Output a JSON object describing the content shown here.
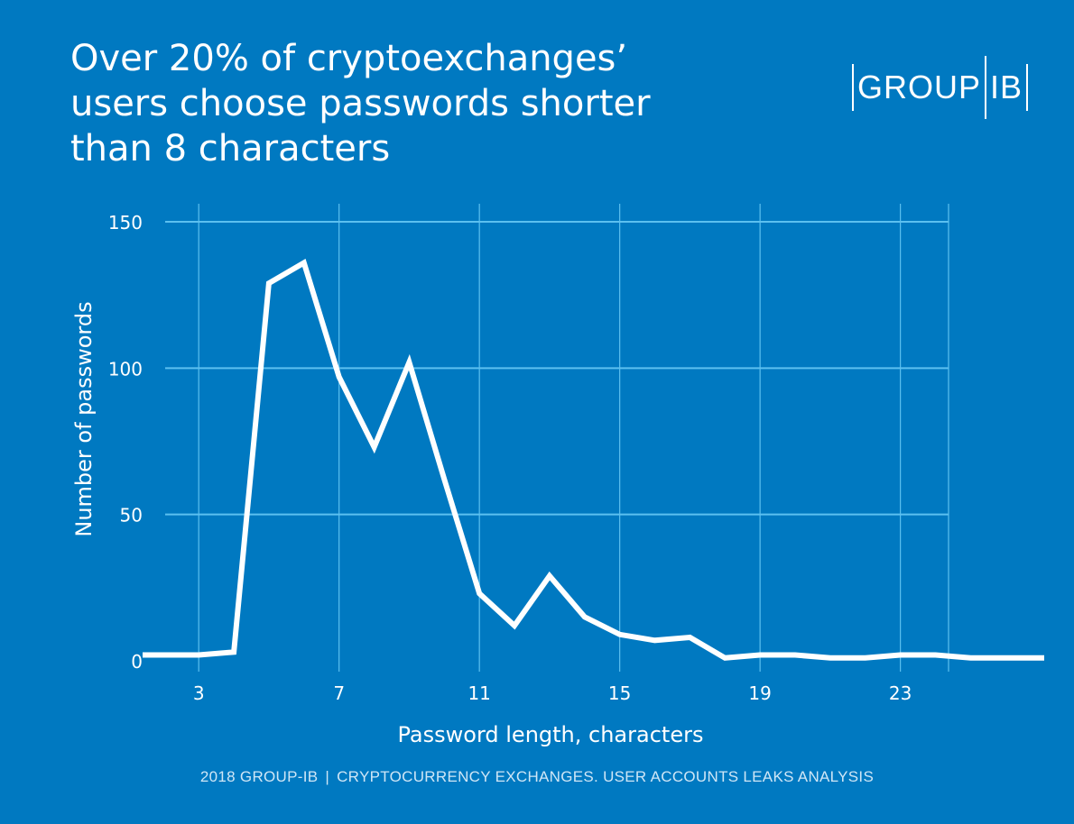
{
  "title_lines": [
    "Over 20% of cryptoexchanges’",
    "users choose passwords shorter",
    "than 8 characters"
  ],
  "logo": {
    "left": "GROUP",
    "right": "IB"
  },
  "footer": {
    "left": "2018 GROUP-IB",
    "separator": "|",
    "right": "CRYPTOCURRENCY EXCHANGES. USER ACCOUNTS LEAKS ANALYSIS"
  },
  "colors": {
    "background": "#0079c1",
    "grid": "#5cc0f0",
    "line": "#ffffff"
  },
  "chart_data": {
    "type": "line",
    "title": "",
    "xlabel": "Password length, characters",
    "ylabel": "Number of passwords",
    "xlim": [
      1.4,
      27.1
    ],
    "ylim": [
      0,
      150
    ],
    "xticks": [
      3,
      7,
      11,
      15,
      19,
      23
    ],
    "yticks": [
      0,
      50,
      100,
      150
    ],
    "grid": true,
    "series": [
      {
        "x": [
          1.4,
          2,
          3,
          4,
          5,
          6,
          7,
          8,
          9,
          10,
          11,
          12,
          13,
          14,
          15,
          16,
          17,
          18,
          19,
          20,
          21,
          22,
          23,
          24,
          25,
          26,
          27.1
        ],
        "values": [
          2,
          2,
          2,
          3,
          129,
          136,
          97,
          73,
          102,
          62,
          23,
          12,
          29,
          15,
          9,
          7,
          8,
          1,
          2,
          2,
          1,
          1,
          2,
          2,
          1,
          1,
          1
        ]
      }
    ]
  }
}
